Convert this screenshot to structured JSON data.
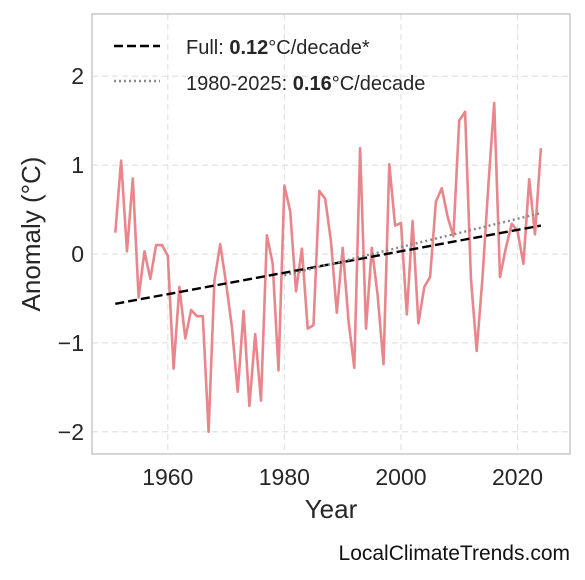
{
  "chart_data": {
    "type": "line",
    "xlabel": "Year",
    "ylabel": "Anomaly (°C)",
    "xlim": [
      1947,
      2029
    ],
    "ylim": [
      -2.25,
      2.7
    ],
    "xticks": [
      {
        "value": 1960,
        "label": "1960"
      },
      {
        "value": 1980,
        "label": "1980"
      },
      {
        "value": 2000,
        "label": "2000"
      },
      {
        "value": 2020,
        "label": "2020"
      }
    ],
    "yticks": [
      {
        "value": 2,
        "label": "2"
      },
      {
        "value": 1,
        "label": "1"
      },
      {
        "value": 0,
        "label": "0"
      },
      {
        "value": -1,
        "label": "−1"
      },
      {
        "value": -2,
        "label": "−2"
      }
    ],
    "grid": true,
    "legend_position": "top-left",
    "series": [
      {
        "color": "#e8868b",
        "style": "solid",
        "x": [
          1951,
          1952,
          1953,
          1954,
          1955,
          1956,
          1957,
          1958,
          1959,
          1960,
          1961,
          1962,
          1963,
          1964,
          1965,
          1966,
          1967,
          1968,
          1969,
          1970,
          1971,
          1972,
          1973,
          1974,
          1975,
          1976,
          1977,
          1978,
          1979,
          1980,
          1981,
          1982,
          1983,
          1984,
          1985,
          1986,
          1987,
          1988,
          1989,
          1990,
          1991,
          1992,
          1993,
          1994,
          1995,
          1996,
          1997,
          1998,
          1999,
          2000,
          2001,
          2002,
          2003,
          2004,
          2005,
          2006,
          2007,
          2008,
          2009,
          2010,
          2011,
          2012,
          2013,
          2014,
          2015,
          2016,
          2017,
          2018,
          2019,
          2020,
          2021,
          2022,
          2023,
          2024
        ],
        "y": [
          0.24,
          1.05,
          0.03,
          0.85,
          -0.49,
          0.03,
          -0.28,
          0.1,
          0.1,
          -0.02,
          -1.29,
          -0.37,
          -0.95,
          -0.63,
          -0.7,
          -0.7,
          -2.0,
          -0.3,
          0.11,
          -0.33,
          -0.82,
          -1.55,
          -0.64,
          -1.71,
          -0.9,
          -1.65,
          0.21,
          -0.11,
          -1.31,
          0.77,
          0.48,
          -0.42,
          0.06,
          -0.84,
          -0.8,
          0.71,
          0.62,
          0.14,
          -0.66,
          0.07,
          -0.75,
          -1.28,
          1.19,
          -0.84,
          0.07,
          -0.46,
          -1.24,
          1.01,
          0.32,
          0.35,
          -0.68,
          0.37,
          -0.78,
          -0.37,
          -0.26,
          0.59,
          0.74,
          0.42,
          0.2,
          1.5,
          1.6,
          -0.27,
          -1.09,
          -0.25,
          0.78,
          1.7,
          -0.26,
          0.07,
          0.34,
          0.26,
          -0.11,
          0.84,
          0.22,
          1.19
        ]
      },
      {
        "name": "Full: 0.12°C/decade*",
        "color": "#000000",
        "style": "dashed",
        "x": [
          1951,
          2024
        ],
        "y": [
          -0.56,
          0.32
        ]
      },
      {
        "name": "1980-2025: 0.16°C/decade",
        "color": "#888888",
        "style": "dotted",
        "x": [
          1980,
          2024
        ],
        "y": [
          -0.24,
          0.46
        ]
      }
    ],
    "legend": [
      {
        "prefix": "Full: ",
        "bold": "0.12",
        "suffix": "°C/decade*",
        "style": "dashed",
        "color": "#000000"
      },
      {
        "prefix": "1980-2025: ",
        "bold": "0.16",
        "suffix": "°C/decade",
        "style": "dotted",
        "color": "#888888"
      }
    ]
  },
  "watermark": "LocalClimateTrends.com"
}
